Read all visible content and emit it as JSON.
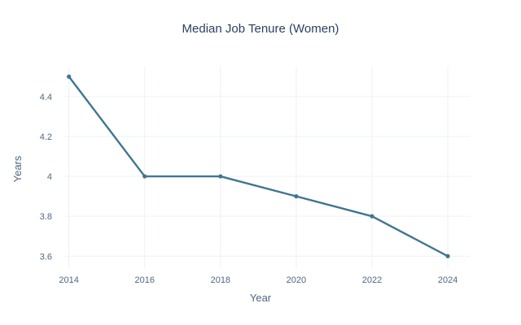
{
  "chart_data": {
    "type": "line",
    "title": "Median Job Tenure (Women)",
    "xlabel": "Year",
    "ylabel": "Years",
    "x": [
      2014,
      2016,
      2018,
      2020,
      2022,
      2024
    ],
    "x_ticks": [
      "2014",
      "2016",
      "2018",
      "2020",
      "2022",
      "2024"
    ],
    "y_ticks": [
      "3.6",
      "3.8",
      "4",
      "4.2",
      "4.4"
    ],
    "xlim": [
      2013.9,
      2024.6
    ],
    "ylim": [
      3.54,
      4.55
    ],
    "grid": true,
    "legend": "none",
    "series": [
      {
        "values": [
          4.5,
          4.0,
          4.0,
          3.9,
          3.8,
          3.6
        ],
        "color": "#3f7692",
        "marker": "circle"
      }
    ]
  }
}
